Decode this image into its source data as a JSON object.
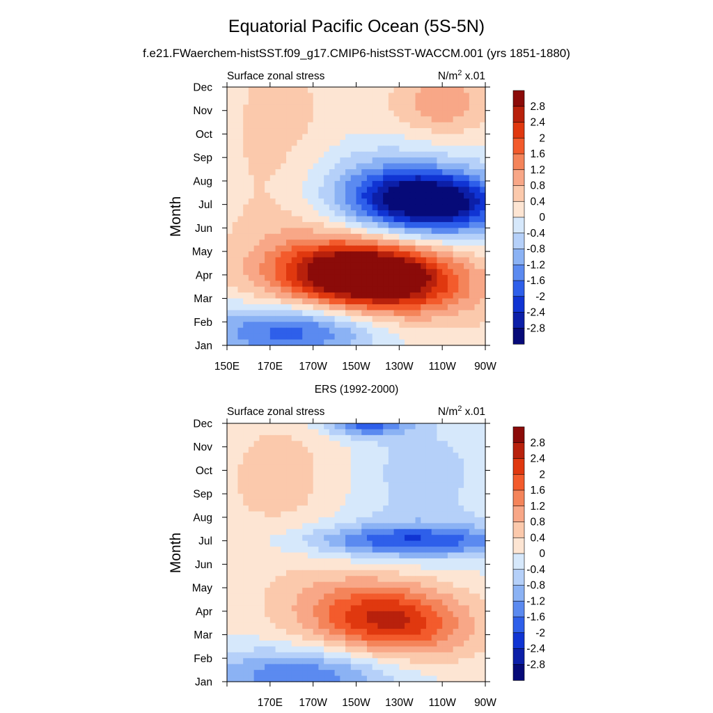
{
  "figure": {
    "title": "Equatorial Pacific Ocean (5S-5N)",
    "subtitle": "f.e21.FWaerchem-histSST.f09_g17.CMIP6-histSST-WACCM.001 (yrs 1851-1880)"
  },
  "colorbar": {
    "levels": [
      "2.8",
      "2.4",
      "2",
      "1.6",
      "1.2",
      "0.8",
      "0.4",
      "0",
      "-0.4",
      "-0.8",
      "-1.2",
      "-1.6",
      "-2",
      "-2.4",
      "-2.8"
    ],
    "colors": [
      "#8b0b09",
      "#b8210c",
      "#e0380f",
      "#f35b2c",
      "#f4845a",
      "#f8a787",
      "#fbc9ac",
      "#fde5d3",
      "#d6e8fb",
      "#b5d0f9",
      "#8bb2f4",
      "#5b8af0",
      "#2e5fea",
      "#1034d3",
      "#0c1fa8",
      "#060a78"
    ]
  },
  "chart_data": [
    {
      "type": "heatmap",
      "panel_title": "",
      "left_label": "Surface zonal stress",
      "units_label": "N/m",
      "units_sup": "2",
      "units_suffix": " x.01",
      "ylabel": "Month",
      "y_ticks": [
        "Jan",
        "Feb",
        "Mar",
        "Apr",
        "May",
        "Jun",
        "Jul",
        "Aug",
        "Sep",
        "Oct",
        "Nov",
        "Dec"
      ],
      "x_ticks": [
        "150E",
        "170E",
        "170W",
        "150W",
        "130W",
        "110W",
        "90W"
      ],
      "xlim": [
        "150E",
        "90W"
      ],
      "ylim": [
        "Jan",
        "Dec"
      ],
      "features": [
        {
          "lon": 215,
          "month": 4.0,
          "value": 3.0,
          "sx": 26,
          "sy": 0.9,
          "rot": 0.15
        },
        {
          "lon": 220,
          "month": 3.8,
          "value": 1.5,
          "sx": 32,
          "sy": 1.4,
          "rot": 0.25
        },
        {
          "lon": 245,
          "month": 7.1,
          "value": -2.9,
          "sx": 24,
          "sy": 0.9,
          "rot": 0.12
        },
        {
          "lon": 230,
          "month": 7.5,
          "value": -1.2,
          "sx": 30,
          "sy": 1.4,
          "rot": 0.15
        },
        {
          "lon": 180,
          "month": 1.6,
          "value": -2.0,
          "sx": 30,
          "sy": 0.8,
          "rot": 0.0
        },
        {
          "lon": 250,
          "month": 11.3,
          "value": 1.0,
          "sx": 16,
          "sy": 1.0,
          "rot": 0.0
        },
        {
          "lon": 175,
          "month": 9.0,
          "value": 0.5,
          "sx": 20,
          "sy": 4.0,
          "rot": 0.0
        }
      ],
      "base_value": 0.1
    },
    {
      "type": "heatmap",
      "panel_title": "ERS (1992-2000)",
      "left_label": "Surface zonal stress",
      "units_label": "N/m",
      "units_sup": "2",
      "units_suffix": " x.01",
      "ylabel": "Month",
      "y_ticks": [
        "Jan",
        "Feb",
        "Mar",
        "Apr",
        "May",
        "Jun",
        "Jul",
        "Aug",
        "Sep",
        "Oct",
        "Nov",
        "Dec"
      ],
      "x_ticks": [
        "170E",
        "170W",
        "150W",
        "130W",
        "110W",
        "90W"
      ],
      "xlim": [
        "150E",
        "90W"
      ],
      "ylim": [
        "Jan",
        "Dec"
      ],
      "features": [
        {
          "lon": 225,
          "month": 3.6,
          "value": 1.8,
          "sx": 24,
          "sy": 1.0,
          "rot": 0.2
        },
        {
          "lon": 220,
          "month": 4.0,
          "value": 0.8,
          "sx": 34,
          "sy": 1.7,
          "rot": 0.2
        },
        {
          "lon": 235,
          "month": 7.0,
          "value": -1.5,
          "sx": 34,
          "sy": 0.45,
          "rot": 0.0
        },
        {
          "lon": 230,
          "month": 7.0,
          "value": -0.6,
          "sx": 40,
          "sy": 1.0,
          "rot": 0.0
        },
        {
          "lon": 185,
          "month": 1.3,
          "value": -1.6,
          "sx": 32,
          "sy": 0.8,
          "rot": 0.0
        },
        {
          "lon": 215,
          "month": 12.0,
          "value": -1.8,
          "sx": 14,
          "sy": 0.4,
          "rot": 0.0
        },
        {
          "lon": 240,
          "month": 10.0,
          "value": -0.6,
          "sx": 22,
          "sy": 1.5,
          "rot": 0.0
        },
        {
          "lon": 175,
          "month": 9.5,
          "value": 0.6,
          "sx": 22,
          "sy": 2.4,
          "rot": 0.0
        }
      ],
      "base_value": 0.0
    }
  ]
}
